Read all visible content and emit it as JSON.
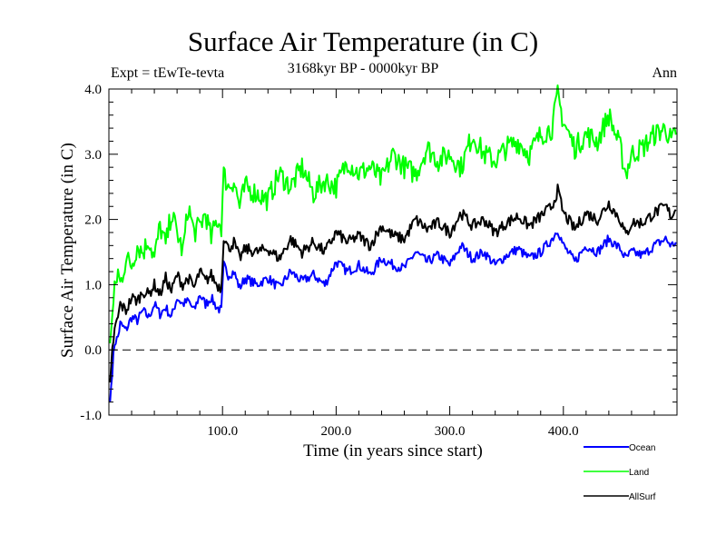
{
  "chart_data": {
    "type": "line",
    "title": "Surface Air Temperature (in C)",
    "subtitle": "3168kyr BP - 0000kyr BP",
    "annotations": {
      "left": "Expt = tEwTe-tevta",
      "right": "Ann"
    },
    "xlabel": "Time (in years since start)",
    "ylabel": "Surface Air Temperature (in C)",
    "xlim": [
      0,
      500
    ],
    "ylim": [
      -1.0,
      4.0
    ],
    "xticks": [
      100,
      200,
      300,
      400
    ],
    "xtick_labels": [
      "100.0",
      "200.0",
      "300.0",
      "400.0"
    ],
    "xminor_step": 20,
    "yticks": [
      -1.0,
      0.0,
      1.0,
      2.0,
      3.0,
      4.0
    ],
    "ytick_labels": [
      "-1.0",
      "0.0",
      "1.0",
      "2.0",
      "3.0",
      "4.0"
    ],
    "yminor_step": 0.2,
    "reference_line": {
      "y": 0.0,
      "style": "dashed"
    },
    "grid": false,
    "legend_position": "bottom-right, below plot",
    "series": [
      {
        "name": "Ocean",
        "color": "#0000ff",
        "x": [
          1,
          3,
          5,
          8,
          10,
          15,
          20,
          25,
          30,
          35,
          40,
          45,
          50,
          55,
          60,
          65,
          70,
          75,
          80,
          85,
          90,
          95,
          99,
          101,
          105,
          110,
          115,
          120,
          130,
          140,
          150,
          160,
          170,
          180,
          190,
          200,
          210,
          220,
          230,
          240,
          250,
          260,
          270,
          280,
          290,
          300,
          310,
          320,
          330,
          340,
          350,
          360,
          370,
          380,
          390,
          395,
          400,
          410,
          420,
          430,
          440,
          450,
          455,
          460,
          470,
          480,
          490,
          495,
          499
        ],
        "values": [
          -0.8,
          -0.3,
          0.1,
          0.2,
          0.4,
          0.3,
          0.5,
          0.45,
          0.6,
          0.5,
          0.7,
          0.55,
          0.65,
          0.5,
          0.8,
          0.7,
          0.75,
          0.6,
          0.85,
          0.7,
          0.8,
          0.65,
          0.6,
          1.3,
          1.15,
          1.2,
          0.95,
          1.1,
          1.0,
          1.1,
          0.95,
          1.2,
          1.05,
          1.15,
          1.0,
          1.35,
          1.2,
          1.3,
          1.15,
          1.4,
          1.3,
          1.25,
          1.5,
          1.35,
          1.45,
          1.3,
          1.6,
          1.4,
          1.5,
          1.3,
          1.45,
          1.55,
          1.4,
          1.5,
          1.7,
          1.85,
          1.6,
          1.35,
          1.6,
          1.5,
          1.7,
          1.55,
          1.4,
          1.5,
          1.45,
          1.6,
          1.7,
          1.6,
          1.65
        ]
      },
      {
        "name": "Land",
        "color": "#00ff00",
        "x": [
          1,
          3,
          5,
          8,
          10,
          15,
          20,
          25,
          30,
          35,
          40,
          45,
          50,
          55,
          60,
          65,
          70,
          75,
          80,
          85,
          90,
          95,
          99,
          101,
          105,
          110,
          115,
          120,
          130,
          140,
          150,
          160,
          170,
          180,
          190,
          200,
          210,
          220,
          230,
          240,
          250,
          260,
          270,
          280,
          290,
          300,
          310,
          320,
          330,
          340,
          350,
          360,
          370,
          380,
          390,
          395,
          400,
          410,
          420,
          430,
          440,
          450,
          455,
          460,
          470,
          480,
          490,
          495,
          499
        ],
        "values": [
          0.1,
          0.5,
          0.9,
          1.2,
          1.0,
          1.4,
          1.3,
          1.6,
          1.5,
          1.7,
          1.4,
          1.9,
          1.6,
          2.1,
          1.8,
          1.5,
          2.2,
          1.8,
          1.9,
          2.1,
          1.7,
          2.0,
          1.9,
          2.7,
          2.5,
          2.6,
          2.2,
          2.5,
          2.4,
          2.3,
          2.7,
          2.5,
          2.8,
          2.4,
          2.6,
          2.5,
          2.9,
          2.7,
          2.8,
          2.6,
          3.0,
          2.8,
          2.7,
          3.1,
          2.9,
          3.0,
          2.8,
          3.3,
          3.0,
          2.9,
          3.1,
          3.2,
          3.0,
          3.3,
          3.4,
          3.9,
          3.5,
          3.1,
          3.3,
          3.2,
          3.6,
          3.1,
          2.7,
          3.0,
          3.1,
          3.3,
          3.4,
          3.2,
          3.3
        ]
      },
      {
        "name": "AllSurf",
        "color": "#000000",
        "x": [
          1,
          3,
          5,
          8,
          10,
          15,
          20,
          25,
          30,
          35,
          40,
          45,
          50,
          55,
          60,
          65,
          70,
          75,
          80,
          85,
          90,
          95,
          99,
          101,
          105,
          110,
          115,
          120,
          130,
          140,
          150,
          160,
          170,
          180,
          190,
          200,
          210,
          220,
          230,
          240,
          250,
          260,
          270,
          280,
          290,
          300,
          310,
          320,
          330,
          340,
          350,
          360,
          370,
          380,
          390,
          395,
          400,
          410,
          420,
          430,
          440,
          450,
          455,
          460,
          470,
          480,
          490,
          495,
          499
        ],
        "values": [
          -0.5,
          0.0,
          0.3,
          0.5,
          0.7,
          0.6,
          0.8,
          0.75,
          0.9,
          0.85,
          1.0,
          0.85,
          1.1,
          0.9,
          1.15,
          1.0,
          1.1,
          0.95,
          1.2,
          1.05,
          1.15,
          1.0,
          0.95,
          1.75,
          1.55,
          1.65,
          1.4,
          1.55,
          1.5,
          1.55,
          1.4,
          1.7,
          1.5,
          1.65,
          1.5,
          1.8,
          1.65,
          1.75,
          1.6,
          1.9,
          1.75,
          1.7,
          2.0,
          1.85,
          1.95,
          1.8,
          2.1,
          1.9,
          2.0,
          1.8,
          1.95,
          2.05,
          1.9,
          2.05,
          2.2,
          2.45,
          2.1,
          1.85,
          2.1,
          2.0,
          2.25,
          2.0,
          1.75,
          1.95,
          1.95,
          2.1,
          2.2,
          2.05,
          2.15
        ]
      }
    ]
  }
}
